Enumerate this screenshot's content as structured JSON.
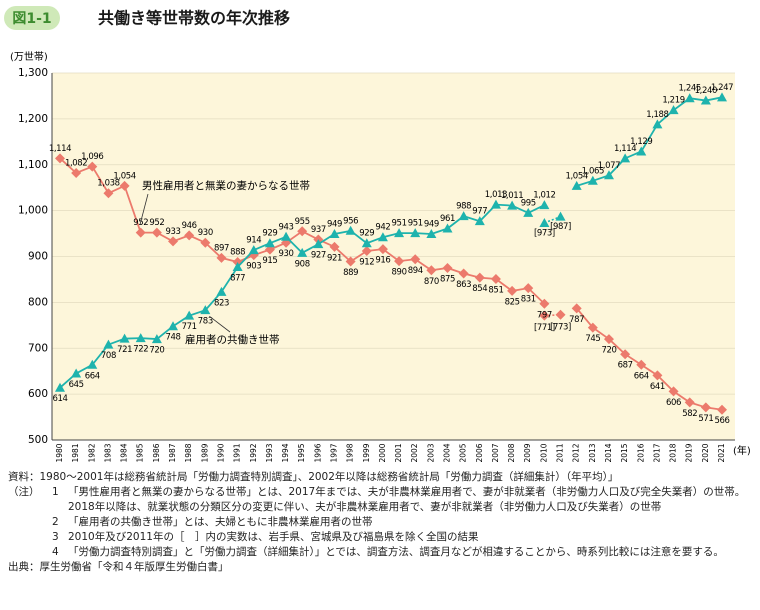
{
  "chart_data": {
    "type": "line",
    "figure_label": "図1-1",
    "title": "共働き等世帯数の年次推移",
    "y_unit": "(万世帯)",
    "x_unit": "(年)",
    "categories": [
      "1980",
      "1981",
      "1982",
      "1983",
      "1984",
      "1985",
      "1986",
      "1987",
      "1988",
      "1989",
      "1990",
      "1991",
      "1992",
      "1993",
      "1994",
      "1995",
      "1996",
      "1997",
      "1998",
      "1999",
      "2000",
      "2001",
      "2002",
      "2003",
      "2004",
      "2005",
      "2006",
      "2007",
      "2008",
      "2009",
      "2010",
      "2011",
      "2012",
      "2013",
      "2014",
      "2015",
      "2016",
      "2017",
      "2018",
      "2019",
      "2020",
      "2021"
    ],
    "ylim": [
      500,
      1300
    ],
    "yticks": [
      500,
      600,
      700,
      800,
      900,
      {
        "value": 1000,
        "label": "1,000"
      },
      {
        "value": 1100,
        "label": "1,100"
      },
      {
        "value": 1200,
        "label": "1,200"
      },
      {
        "value": 1300,
        "label": "1,300"
      }
    ],
    "grid": true,
    "series": [
      {
        "name": "男性雇用者と無業の妻からなる世帯",
        "color": "#ec7a6c",
        "marker": "diamond",
        "values": [
          1114,
          1082,
          1096,
          1038,
          1054,
          952,
          952,
          933,
          946,
          930,
          897,
          888,
          903,
          915,
          930,
          955,
          937,
          921,
          889,
          912,
          916,
          890,
          894,
          870,
          875,
          863,
          854,
          851,
          825,
          831,
          797,
          null,
          787,
          745,
          720,
          687,
          664,
          641,
          606,
          582,
          571,
          566
        ],
        "value_labels": [
          "1,114",
          "1,082",
          "1,096",
          "1,038",
          "1,054",
          "952",
          "952",
          "933",
          "946",
          "930",
          "897",
          "888",
          "903",
          "915",
          "930",
          "955",
          "937",
          "921",
          "889",
          "912",
          "916",
          "890",
          "894",
          "870",
          "875",
          "863",
          "854",
          "851",
          "825",
          "831",
          "797",
          null,
          "787",
          "745",
          "720",
          "687",
          "664",
          "641",
          "606",
          "582",
          "571",
          "566"
        ],
        "excluded_values": [
          null,
          null,
          null,
          null,
          null,
          null,
          null,
          null,
          null,
          null,
          null,
          null,
          null,
          null,
          null,
          null,
          null,
          null,
          null,
          null,
          null,
          null,
          null,
          null,
          null,
          null,
          null,
          null,
          null,
          null,
          771,
          773,
          null,
          null,
          null,
          null,
          null,
          null,
          null,
          null,
          null,
          null
        ],
        "excluded_value_labels": [
          null,
          null,
          null,
          null,
          null,
          null,
          null,
          null,
          null,
          null,
          null,
          null,
          null,
          null,
          null,
          null,
          null,
          null,
          null,
          null,
          null,
          null,
          null,
          null,
          null,
          null,
          null,
          null,
          null,
          null,
          "[771]",
          "[773]",
          null,
          null,
          null,
          null,
          null,
          null,
          null,
          null,
          null,
          null
        ]
      },
      {
        "name": "雇用者の共働き世帯",
        "color": "#1eb3ad",
        "marker": "triangle",
        "values": [
          614,
          645,
          664,
          708,
          721,
          722,
          720,
          748,
          771,
          783,
          823,
          877,
          914,
          929,
          943,
          908,
          927,
          949,
          956,
          929,
          942,
          951,
          951,
          949,
          961,
          988,
          977,
          1013,
          1011,
          995,
          1012,
          null,
          1054,
          1065,
          1077,
          1114,
          1129,
          1188,
          1219,
          1245,
          1240,
          1247
        ],
        "value_labels": [
          "614",
          "645",
          "664",
          "708",
          "721",
          "722",
          "720",
          "748",
          "771",
          "783",
          "823",
          "877",
          "914",
          "929",
          "943",
          "908",
          "927",
          "949",
          "956",
          "929",
          "942",
          "951",
          "951",
          "949",
          "961",
          "988",
          "977",
          "1,013",
          "1,011",
          "995",
          "1,012",
          null,
          "1,054",
          "1,065",
          "1,077",
          "1,114",
          "1,129",
          "1,188",
          "1,219",
          "1,245",
          "1,240",
          "1,247"
        ],
        "excluded_values": [
          null,
          null,
          null,
          null,
          null,
          null,
          null,
          null,
          null,
          null,
          null,
          null,
          null,
          null,
          null,
          null,
          null,
          null,
          null,
          null,
          null,
          null,
          null,
          null,
          null,
          null,
          null,
          null,
          null,
          null,
          973,
          987,
          null,
          null,
          null,
          null,
          null,
          null,
          null,
          null,
          null,
          null
        ],
        "excluded_value_labels": [
          null,
          null,
          null,
          null,
          null,
          null,
          null,
          null,
          null,
          null,
          null,
          null,
          null,
          null,
          null,
          null,
          null,
          null,
          null,
          null,
          null,
          null,
          null,
          null,
          null,
          null,
          null,
          null,
          null,
          null,
          "[973]",
          "[987]",
          null,
          null,
          null,
          null,
          null,
          null,
          null,
          null,
          null,
          null
        ]
      }
    ],
    "source_note": "資料：1980～2001年は総務省統計局「労働力調査特別調査」、2002年以降は総務省統計局「労働力調査（詳細集計）（年平均）」",
    "notes_label": "（注）",
    "notes": [
      {
        "num": "1",
        "text": "「男性雇用者と無業の妻からなる世帯」とは、2017年までは、夫が非農林業雇用者で、妻が非就業者（非労働力人口及び完全失業者）の世帯。2018年以降は、就業状態の分類区分の変更に伴い、夫が非農林業雇用者で、妻が非就業者（非労働力人口及び失業者）の世帯"
      },
      {
        "num": "2",
        "text": "「雇用者の共働き世帯」とは、夫婦ともに非農林業雇用者の世帯"
      },
      {
        "num": "3",
        "text": "2010年及び2011年の［　］内の実数は、岩手県、宮城県及び福島県を除く全国の結果"
      },
      {
        "num": "4",
        "text": "「労働力調査特別調査」と「労働力調査（詳細集計）」とでは、調査方法、調査月などが相違することから、時系列比較には注意を要する。"
      }
    ],
    "credit": "出典：厚生労働省「令和４年版厚生労働白書」"
  }
}
